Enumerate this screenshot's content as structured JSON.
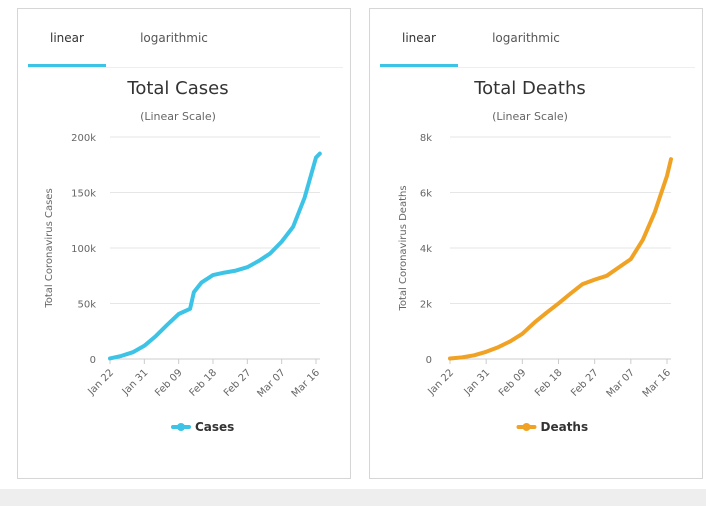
{
  "chart_data": [
    {
      "type": "line",
      "tabs": [
        "linear",
        "logarithmic"
      ],
      "active_tab": "linear",
      "title": "Total Cases",
      "subtitle": "(Linear Scale)",
      "xlabel": "",
      "ylabel": "Total Coronavirus Cases",
      "ylim": [
        0,
        200000
      ],
      "y_ticks": [
        0,
        50000,
        100000,
        150000,
        200000
      ],
      "y_tick_labels": [
        "0",
        "50k",
        "100k",
        "150k",
        "200k"
      ],
      "x_ticks": [
        "Jan 22",
        "Jan 31",
        "Feb 09",
        "Feb 18",
        "Feb 27",
        "Mar 07",
        "Mar 16"
      ],
      "x": [
        "Jan 22",
        "Jan 25",
        "Jan 28",
        "Jan 31",
        "Feb 03",
        "Feb 06",
        "Feb 09",
        "Feb 12",
        "Feb 13",
        "Feb 15",
        "Feb 18",
        "Feb 21",
        "Feb 24",
        "Feb 27",
        "Mar 01",
        "Mar 04",
        "Mar 07",
        "Mar 10",
        "Mar 13",
        "Mar 16",
        "Mar 17"
      ],
      "series": [
        {
          "name": "Cases",
          "color": "#3cc3e6",
          "values": [
            580,
            2800,
            6100,
            11900,
            20600,
            30800,
            40500,
            45200,
            60300,
            69000,
            75600,
            77800,
            79600,
            82700,
            88400,
            95100,
            105800,
            119100,
            145300,
            181500,
            185000
          ]
        }
      ]
    },
    {
      "type": "line",
      "tabs": [
        "linear",
        "logarithmic"
      ],
      "active_tab": "linear",
      "title": "Total Deaths",
      "subtitle": "(Linear Scale)",
      "xlabel": "",
      "ylabel": "Total Coronavirus Deaths",
      "ylim": [
        0,
        8000
      ],
      "y_ticks": [
        0,
        2000,
        4000,
        6000,
        8000
      ],
      "y_tick_labels": [
        "0",
        "2k",
        "4k",
        "6k",
        "8k"
      ],
      "x_ticks": [
        "Jan 22",
        "Jan 31",
        "Feb 09",
        "Feb 18",
        "Feb 27",
        "Mar 07",
        "Mar 16"
      ],
      "x": [
        "Jan 22",
        "Jan 25",
        "Jan 28",
        "Jan 31",
        "Feb 03",
        "Feb 06",
        "Feb 09",
        "Feb 12",
        "Feb 15",
        "Feb 18",
        "Feb 21",
        "Feb 24",
        "Feb 27",
        "Mar 01",
        "Mar 04",
        "Mar 07",
        "Mar 10",
        "Mar 13",
        "Mar 16",
        "Mar 17"
      ],
      "series": [
        {
          "name": "Deaths",
          "color": "#f0a225",
          "values": [
            17,
            56,
            132,
            259,
            427,
            638,
            908,
            1310,
            1666,
            2002,
            2360,
            2700,
            2860,
            3000,
            3300,
            3600,
            4300,
            5300,
            6600,
            7200
          ]
        }
      ]
    }
  ]
}
